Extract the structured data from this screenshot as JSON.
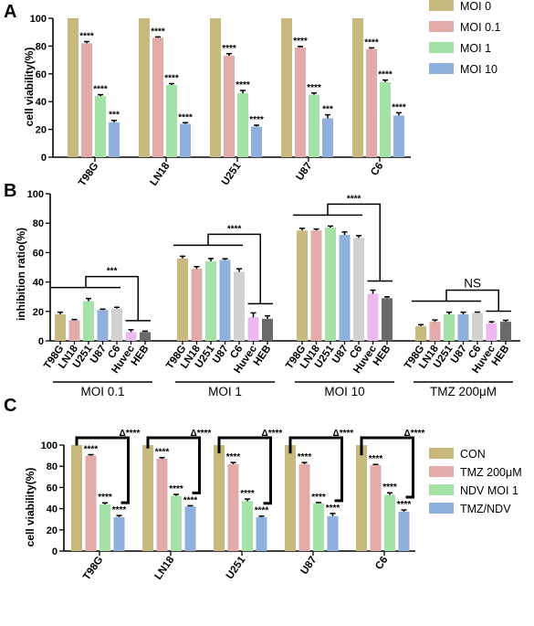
{
  "chart_data": [
    {
      "panel": "A",
      "type": "bar",
      "ylabel": "cell viability(%)",
      "ylim": [
        0,
        100
      ],
      "yticks": [
        0,
        20,
        40,
        60,
        80,
        100
      ],
      "categories": [
        "T98G",
        "LN18",
        "U251",
        "U87",
        "C6"
      ],
      "series": [
        {
          "name": "MOI 0",
          "color": "#c8b97e",
          "values": [
            100,
            100,
            100,
            100,
            100
          ],
          "errors": [
            0,
            0,
            0,
            0,
            0
          ],
          "sig": [
            "",
            "",
            "",
            "",
            ""
          ]
        },
        {
          "name": "MOI 0.1",
          "color": "#e3aaaa",
          "values": [
            82,
            86,
            73,
            79,
            78
          ],
          "errors": [
            1.2,
            0.6,
            1.5,
            0.7,
            0.7
          ],
          "sig": [
            "****",
            "****",
            "****",
            "****",
            "****"
          ]
        },
        {
          "name": "MOI 1",
          "color": "#a4e2a7",
          "values": [
            44,
            52,
            46,
            45,
            54
          ],
          "errors": [
            1.0,
            1.0,
            2.0,
            1.2,
            1.5
          ],
          "sig": [
            "****",
            "****",
            "****",
            "****",
            "****"
          ]
        },
        {
          "name": "MOI 10",
          "color": "#8fb0dd",
          "values": [
            25,
            24,
            22,
            28,
            30
          ],
          "errors": [
            1.5,
            0.8,
            1.0,
            2.5,
            2.0
          ],
          "sig": [
            "***",
            "****",
            "****",
            "***",
            "****"
          ]
        }
      ]
    },
    {
      "panel": "B",
      "type": "bar",
      "ylabel": "inhibition ratio(%)",
      "ylim": [
        0,
        100
      ],
      "yticks": [
        0,
        20,
        40,
        60,
        80,
        100
      ],
      "categories": [
        "T98G",
        "LN18",
        "U251",
        "U87",
        "C6",
        "Huvec",
        "HEB"
      ],
      "bar_colors": [
        "#c8b97e",
        "#e3aaaa",
        "#a4e2a7",
        "#8fb0dd",
        "#d1d1d1",
        "#ecb8ef",
        "#6a6a6a"
      ],
      "groups": [
        {
          "label": "MOI 0.1",
          "values": [
            18,
            14,
            27,
            21,
            22,
            6,
            6
          ],
          "errors": [
            1.5,
            0.5,
            1.8,
            0.6,
            0.8,
            1.5,
            0.6
          ],
          "sig": "***"
        },
        {
          "label": "MOI 1",
          "values": [
            56,
            49,
            54,
            55,
            47,
            16,
            15
          ],
          "errors": [
            1.5,
            1.5,
            2.0,
            0.8,
            2.0,
            3.0,
            2.0
          ],
          "sig": "****"
        },
        {
          "label": "MOI 10",
          "values": [
            75,
            75,
            77,
            72,
            70,
            32,
            29
          ],
          "errors": [
            1.5,
            1.0,
            1.0,
            2.0,
            1.5,
            2.5,
            1.0
          ],
          "sig": "****"
        },
        {
          "label": "TMZ 200μM",
          "values": [
            10,
            13,
            18,
            18,
            19,
            12,
            13
          ],
          "errors": [
            1.0,
            1.2,
            1.5,
            1.5,
            0.6,
            1.0,
            1.0
          ],
          "sig": "NS"
        }
      ]
    },
    {
      "panel": "C",
      "type": "bar",
      "ylabel": "cell viability(%)",
      "ylim": [
        0,
        100
      ],
      "yticks": [
        0,
        20,
        40,
        60,
        80,
        100
      ],
      "categories": [
        "T98G",
        "LN18",
        "U251",
        "U87",
        "C6"
      ],
      "delta_label": "Δ****",
      "series": [
        {
          "name": "CON",
          "color": "#c8b97e",
          "values": [
            100,
            100,
            100,
            100,
            100
          ],
          "errors": [
            0,
            0,
            0,
            0,
            0
          ],
          "sig": [
            "",
            "",
            "",
            "",
            ""
          ]
        },
        {
          "name": "TMZ 200μM",
          "color": "#e3aaaa",
          "values": [
            90,
            87,
            82,
            82,
            81
          ],
          "errors": [
            1.0,
            1.2,
            1.5,
            1.5,
            0.7
          ],
          "sig": [
            "****",
            "****",
            "****",
            "****",
            "****"
          ]
        },
        {
          "name": "NDV MOI 1",
          "color": "#a4e2a7",
          "values": [
            44,
            52,
            47,
            45,
            53
          ],
          "errors": [
            1.5,
            1.5,
            2.0,
            0.8,
            2.0
          ],
          "sig": [
            "****",
            "****",
            "****",
            "****",
            "****"
          ]
        },
        {
          "name": "TMZ/NDV",
          "color": "#8fb0dd",
          "values": [
            32,
            42,
            32,
            33,
            37
          ],
          "errors": [
            1.5,
            0.8,
            1.0,
            2.5,
            1.8
          ],
          "sig": [
            "****",
            "****",
            "****",
            "****",
            "****"
          ]
        }
      ]
    }
  ]
}
